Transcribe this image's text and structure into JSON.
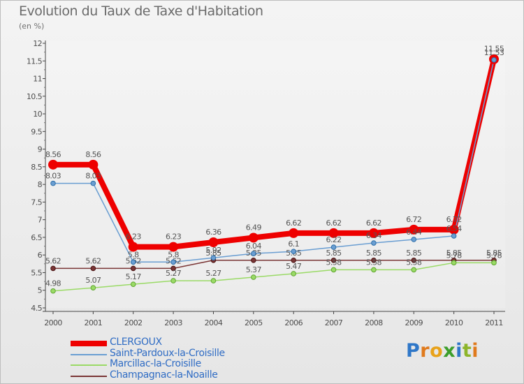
{
  "title": "Evolution du Taux de Taxe d'Habitation",
  "unit_label": "(en %)",
  "chart_data": {
    "type": "line",
    "title": "Evolution du Taux de Taxe d'Habitation",
    "ylabel": "(en %)",
    "xlabel": "",
    "x": [
      "2000",
      "2001",
      "2002",
      "2003",
      "2004",
      "2005",
      "2006",
      "2007",
      "2008",
      "2009",
      "2010",
      "2011"
    ],
    "ylim": [
      4.5,
      12
    ],
    "yticks": [
      "4.5",
      "5",
      "5.5",
      "6",
      "6.5",
      "7",
      "7.5",
      "8",
      "8.5",
      "9",
      "9.5",
      "10",
      "10.5",
      "11",
      "11.5",
      "12"
    ],
    "grid": false,
    "series": [
      {
        "name": "CLERGOUX",
        "color": "#ee0000",
        "values": [
          8.56,
          8.56,
          6.23,
          6.23,
          6.36,
          6.49,
          6.62,
          6.62,
          6.62,
          6.72,
          6.72,
          11.55
        ],
        "labels": [
          "8.56",
          "8.56",
          "6.23",
          "6.23",
          "6.36",
          "6.49",
          "6.62",
          "6.62",
          "6.62",
          "6.72",
          "6.72",
          "11.55"
        ]
      },
      {
        "name": "Saint-Pardoux-la-Croisille",
        "color": "#6a9ed2",
        "values": [
          8.03,
          8.03,
          5.8,
          5.8,
          5.92,
          6.04,
          6.1,
          6.22,
          6.34,
          6.44,
          6.54,
          11.53
        ],
        "labels": [
          "8.03",
          "8.03",
          "5.8",
          "5.8",
          "5.92",
          "6.04",
          "6.1",
          "6.22",
          "6.34",
          "6.44",
          "6.54",
          "11.53"
        ]
      },
      {
        "name": "Marcillac-la-Croisille",
        "color": "#9ada66",
        "values": [
          4.98,
          5.07,
          5.17,
          5.27,
          5.27,
          5.37,
          5.47,
          5.58,
          5.58,
          5.58,
          5.78,
          5.78
        ],
        "labels": [
          "4.98",
          "5.07",
          "5.17",
          "5.27",
          "5.27",
          "5.37",
          "5.47",
          "5.58",
          "5.58",
          "5.58",
          "5.78",
          "5.78"
        ]
      },
      {
        "name": "Champagnac-la-Noaille",
        "color": "#7a3535",
        "values": [
          5.62,
          5.62,
          5.62,
          5.62,
          5.85,
          5.85,
          5.85,
          5.85,
          5.85,
          5.85,
          5.85,
          5.85
        ],
        "labels": [
          "5.62",
          "5.62",
          "5.62",
          "5.62",
          "5.85",
          "5.85",
          "5.85",
          "5.85",
          "5.85",
          "5.85",
          "5.85",
          "5.85"
        ]
      }
    ]
  },
  "legend": [
    "CLERGOUX",
    "Saint-Pardoux-la-Croisille",
    "Marcillac-la-Croisille",
    "Champagnac-la-Noaille"
  ],
  "logo": {
    "letters": [
      "P",
      "r",
      "o",
      "x",
      "i",
      "t",
      "i"
    ],
    "colors": [
      "#2f77c8",
      "#e07a1d",
      "#e8a21a",
      "#3c9e2b",
      "#2f77c8",
      "#8db52a",
      "#e07a1d"
    ]
  }
}
